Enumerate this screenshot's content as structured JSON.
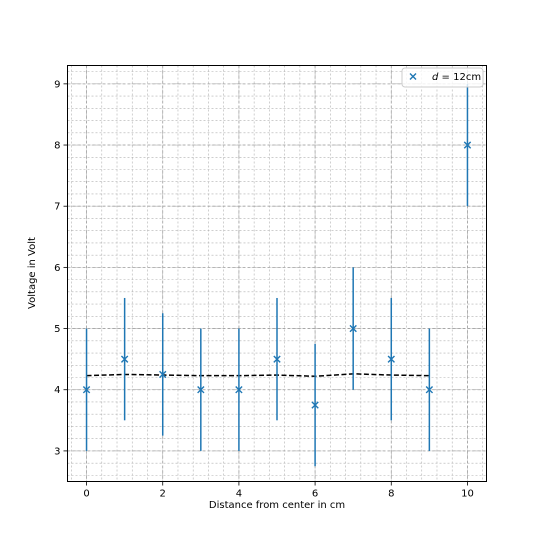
{
  "chart_data": {
    "type": "scatter",
    "title": "",
    "xlabel": "Distance from center in cm",
    "ylabel": "Voltage in Volt",
    "xlim": [
      -0.5,
      10.5
    ],
    "ylim": [
      2.5,
      9.3
    ],
    "x_ticks": [
      0,
      2,
      4,
      6,
      8,
      10
    ],
    "y_ticks": [
      3,
      4,
      5,
      6,
      7,
      8,
      9
    ],
    "x_minor_step": 0.4,
    "y_minor_step": 0.2,
    "grid": "major and minor (dashed)",
    "legend_position": "upper right",
    "colors": {
      "marker": "#1f77b4",
      "fit": "#000000",
      "grid": "#b0b0b0"
    },
    "series": [
      {
        "name_prefix": "d",
        "name_suffix": " = 12cm",
        "marker": "x",
        "x": [
          0,
          1,
          2,
          3,
          4,
          5,
          6,
          7,
          8,
          9,
          10
        ],
        "y": [
          4.0,
          4.5,
          4.25,
          4.0,
          4.0,
          4.5,
          3.75,
          5.0,
          4.5,
          4.0,
          8.0
        ],
        "yerr_low": [
          3.0,
          3.5,
          3.25,
          3.0,
          3.0,
          3.5,
          2.75,
          4.0,
          3.5,
          3.0,
          7.0
        ],
        "yerr_high": [
          5.0,
          5.5,
          5.25,
          5.0,
          5.0,
          5.5,
          4.75,
          6.0,
          5.5,
          5.0,
          9.0
        ]
      }
    ],
    "fit_line": {
      "style": "dashed",
      "x": [
        0,
        1,
        2,
        3,
        4,
        5,
        6,
        7,
        8,
        9
      ],
      "y": [
        4.23,
        4.25,
        4.24,
        4.23,
        4.23,
        4.24,
        4.22,
        4.26,
        4.24,
        4.23
      ]
    }
  }
}
